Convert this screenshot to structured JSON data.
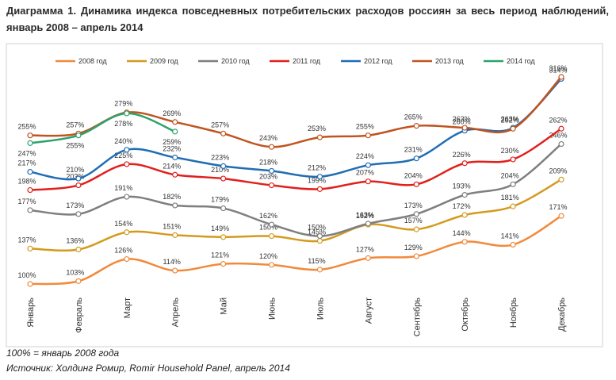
{
  "chart_data": {
    "type": "line",
    "title": "Диаграмма 1. Динамика индекса повседневных потребительских расходов россиян за весь период наблюдений, январь 2008 – апрель 2014",
    "categories": [
      "Январь",
      "Февраль",
      "Март",
      "Апрель",
      "Май",
      "Июнь",
      "Июль",
      "Август",
      "Сентябрь",
      "Октябрь",
      "Ноябрь",
      "Декабрь"
    ],
    "series": [
      {
        "name": "2008 год",
        "color": "#f08a3c",
        "values": [
          100,
          103,
          126,
          114,
          121,
          120,
          115,
          127,
          129,
          144,
          141,
          171
        ],
        "value_labels": [
          "100%",
          "103%",
          "126%",
          "114%",
          "121%",
          "120%",
          "115%",
          "127%",
          "129%",
          "144%",
          "141%",
          "171%"
        ]
      },
      {
        "name": "2009 год",
        "color": "#d49a1e",
        "values": [
          137,
          136,
          154,
          151,
          149,
          150,
          145,
          162,
          157,
          172,
          181,
          209
        ],
        "value_labels": [
          "137%",
          "136%",
          "154%",
          "151%",
          "149%",
          "150%",
          "145%",
          "162%",
          "157%",
          "172%",
          "181%",
          "209%"
        ]
      },
      {
        "name": "2010 год",
        "color": "#7f7f7f",
        "values": [
          177,
          173,
          191,
          182,
          179,
          162,
          150,
          163,
          173,
          193,
          204,
          246
        ],
        "value_labels": [
          "177%",
          "173%",
          "191%",
          "182%",
          "179%",
          "162%",
          "150%",
          "163%",
          "173%",
          "193%",
          "204%",
          "246%"
        ]
      },
      {
        "name": "2011 год",
        "color": "#e0201c",
        "values": [
          198,
          203,
          225,
          214,
          210,
          203,
          199,
          207,
          204,
          226,
          230,
          262
        ],
        "value_labels": [
          "198%",
          "203%",
          "225%",
          "214%",
          "210%",
          "203%",
          "199%",
          "207%",
          "204%",
          "226%",
          "230%",
          "262%"
        ]
      },
      {
        "name": "2012 год",
        "color": "#1f6db5",
        "values": [
          217,
          210,
          240,
          232,
          223,
          218,
          212,
          224,
          231,
          260,
          263,
          314
        ],
        "value_labels": [
          "217%",
          "210%",
          "240%",
          "232%",
          "223%",
          "218%",
          "212%",
          "224%",
          "231%",
          "260%",
          "263%",
          "314%"
        ]
      },
      {
        "name": "2013 год",
        "color": "#c0541f",
        "values": [
          255,
          257,
          279,
          269,
          257,
          243,
          253,
          255,
          265,
          263,
          262,
          316
        ],
        "value_labels": [
          "255%",
          "257%",
          "279%",
          "269%",
          "257%",
          "243%",
          "253%",
          "255%",
          "265%",
          "263%",
          "262%",
          "316%"
        ]
      },
      {
        "name": "2014 год",
        "color": "#2ca26c",
        "values": [
          247,
          255,
          278,
          259,
          null,
          null,
          null,
          null,
          null,
          null,
          null,
          null
        ],
        "value_labels": [
          "247%",
          "255%",
          "278%",
          "259%",
          null,
          null,
          null,
          null,
          null,
          null,
          null,
          null
        ]
      }
    ],
    "notes": [
      "100% = январь 2008 года",
      "Источник: Холдинг Ромир, Romir Household Panel, апрель 2014"
    ]
  }
}
